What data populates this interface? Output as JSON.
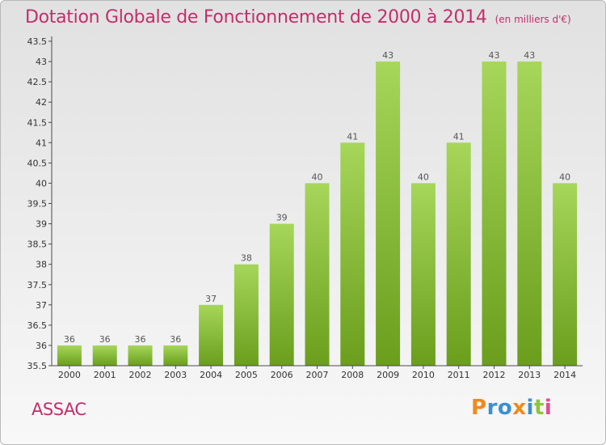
{
  "chart_data": {
    "type": "bar",
    "title": "Dotation Globale de Fonctionnement de 2000 à 2014",
    "unit": "(en milliers d'€)",
    "categories": [
      "2000",
      "2001",
      "2002",
      "2003",
      "2004",
      "2005",
      "2006",
      "2007",
      "2008",
      "2009",
      "2010",
      "2011",
      "2012",
      "2013",
      "2014"
    ],
    "values": [
      36,
      36,
      36,
      36,
      37,
      38,
      39,
      40,
      41,
      43,
      40,
      41,
      43,
      43,
      40
    ],
    "data_labels": [
      "36",
      "36",
      "36",
      "36",
      "37",
      "38",
      "39",
      "40",
      "41",
      "43",
      "40",
      "41",
      "43",
      "43",
      "40"
    ],
    "ylim": [
      35.5,
      43.5
    ],
    "yticks": [
      "35.5",
      "36",
      "36.5",
      "37",
      "37.5",
      "38",
      "38.5",
      "39",
      "39.5",
      "40",
      "40.5",
      "41",
      "41.5",
      "42",
      "42.5",
      "43",
      "43.5"
    ],
    "grid": false,
    "legend": "none",
    "colors": {
      "bar_light": "#a6d65a",
      "bar_dark": "#6a9e1c",
      "title": "#c22f6b",
      "axis": "#4a4a4a"
    }
  },
  "footer": {
    "commune": "ASSAC",
    "logo_text": "Proxiti",
    "logo_colors": [
      "#f08a1c",
      "#3c8fd0",
      "#3c8fd0",
      "#f08a1c",
      "#3c8fd0",
      "#8cc63f",
      "#e44b8d"
    ]
  }
}
